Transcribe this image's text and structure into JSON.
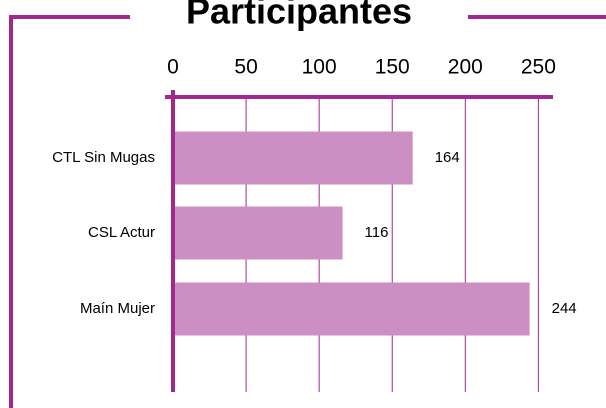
{
  "chart_data": {
    "type": "bar",
    "orientation": "horizontal",
    "title": "Participantes",
    "categories": [
      "CTL Sin Mugas",
      "CSL Actur",
      "Maín Mujer"
    ],
    "values": [
      164,
      116,
      244
    ],
    "color": "#cc8fc4",
    "axis_color": "#a0288f",
    "xlim": [
      0,
      260
    ],
    "xticks": [
      0,
      50,
      100,
      150,
      200,
      250
    ],
    "grid": true
  }
}
